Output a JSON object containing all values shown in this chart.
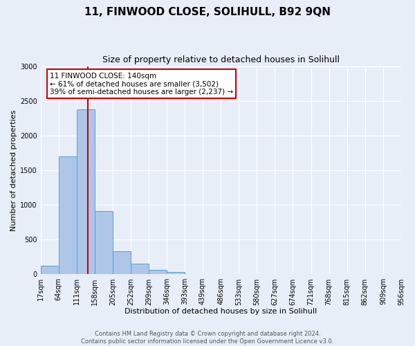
{
  "title": "11, FINWOOD CLOSE, SOLIHULL, B92 9QN",
  "subtitle": "Size of property relative to detached houses in Solihull",
  "xlabel": "Distribution of detached houses by size in Solihull",
  "ylabel": "Number of detached properties",
  "bin_edges": [
    17,
    64,
    111,
    158,
    205,
    252,
    299,
    346,
    393,
    439,
    486,
    533,
    580,
    627,
    674,
    721,
    768,
    815,
    862,
    909,
    956
  ],
  "bar_heights": [
    120,
    1700,
    2380,
    910,
    335,
    150,
    65,
    30,
    0,
    0,
    0,
    0,
    0,
    0,
    0,
    0,
    0,
    0,
    0,
    0
  ],
  "bar_color": "#aec6e8",
  "bar_edge_color": "#5a9fd4",
  "vline_x": 140,
  "vline_color": "#cc0000",
  "annotation_title": "11 FINWOOD CLOSE: 140sqm",
  "annotation_line1": "← 61% of detached houses are smaller (3,502)",
  "annotation_line2": "39% of semi-detached houses are larger (2,237) →",
  "annotation_box_edge": "#cc0000",
  "ylim": [
    0,
    3000
  ],
  "yticks": [
    0,
    500,
    1000,
    1500,
    2000,
    2500,
    3000
  ],
  "xtick_labels": [
    "17sqm",
    "64sqm",
    "111sqm",
    "158sqm",
    "205sqm",
    "252sqm",
    "299sqm",
    "346sqm",
    "393sqm",
    "439sqm",
    "486sqm",
    "533sqm",
    "580sqm",
    "627sqm",
    "674sqm",
    "721sqm",
    "768sqm",
    "815sqm",
    "862sqm",
    "909sqm",
    "956sqm"
  ],
  "footer_line1": "Contains HM Land Registry data © Crown copyright and database right 2024.",
  "footer_line2": "Contains public sector information licensed under the Open Government Licence v3.0.",
  "background_color": "#e8eef8",
  "plot_bg_color": "#e8eef8",
  "title_fontsize": 11,
  "subtitle_fontsize": 9,
  "xlabel_fontsize": 8,
  "ylabel_fontsize": 8,
  "tick_fontsize": 7,
  "footer_fontsize": 6
}
